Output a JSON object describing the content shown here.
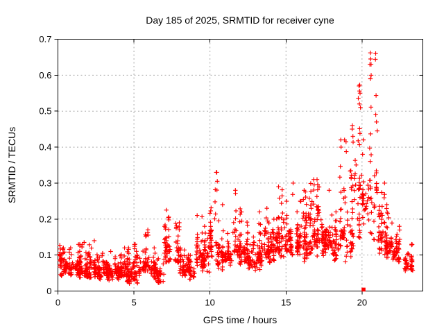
{
  "title": "Day 185 of 2025, SRMTID for receiver cyne",
  "chart_data": {
    "type": "scatter",
    "title": "Day 185 of 2025, SRMTID for receiver cyne",
    "xlabel": "GPS time / hours",
    "ylabel": "SRMTID / TECUs",
    "xlim": [
      0,
      24
    ],
    "ylim": [
      0,
      0.7
    ],
    "xticks": {
      "values": [
        0,
        5,
        10,
        15,
        20
      ],
      "labels": [
        "0",
        "5",
        "10",
        "15",
        "20"
      ]
    },
    "yticks": {
      "values": [
        0,
        0.1,
        0.2,
        0.3,
        0.4,
        0.5,
        0.6,
        0.7
      ],
      "labels": [
        "0",
        "0.1",
        "0.2",
        "0.3",
        "0.4",
        "0.5",
        "0.6",
        "0.7"
      ]
    },
    "grid": true,
    "legend": "none",
    "series": [
      {
        "name": "SRMTID",
        "marker": "plus",
        "color": "#ff0000"
      }
    ],
    "envelope_bands_format": [
      "x_start_h",
      "x_end_h",
      "y_min_TECU",
      "y_max_TECU",
      "y_typical_TECU",
      "approx_point_count"
    ],
    "envelope_bands": [
      [
        0.0,
        0.5,
        0.04,
        0.127,
        0.085,
        48
      ],
      [
        0.5,
        1.0,
        0.035,
        0.12,
        0.075,
        48
      ],
      [
        1.0,
        1.5,
        0.035,
        0.13,
        0.07,
        48
      ],
      [
        1.5,
        2.0,
        0.03,
        0.135,
        0.065,
        48
      ],
      [
        2.0,
        2.5,
        0.03,
        0.14,
        0.065,
        48
      ],
      [
        2.5,
        3.0,
        0.03,
        0.105,
        0.06,
        48
      ],
      [
        3.0,
        3.5,
        0.028,
        0.11,
        0.06,
        48
      ],
      [
        3.5,
        4.0,
        0.025,
        0.095,
        0.055,
        48
      ],
      [
        4.0,
        4.5,
        0.03,
        0.12,
        0.06,
        48
      ],
      [
        4.5,
        5.0,
        0.02,
        0.12,
        0.055,
        48
      ],
      [
        5.0,
        5.5,
        0.02,
        0.13,
        0.06,
        44
      ],
      [
        5.5,
        6.0,
        0.03,
        0.17,
        0.08,
        44
      ],
      [
        6.0,
        6.5,
        0.03,
        0.12,
        0.07,
        40
      ],
      [
        6.5,
        7.0,
        0.02,
        0.09,
        0.055,
        40
      ],
      [
        7.0,
        7.5,
        0.05,
        0.225,
        0.12,
        44
      ],
      [
        7.5,
        8.0,
        0.05,
        0.19,
        0.1,
        40
      ],
      [
        8.0,
        8.5,
        0.04,
        0.12,
        0.07,
        40
      ],
      [
        8.5,
        9.0,
        0.03,
        0.1,
        0.06,
        40
      ],
      [
        9.0,
        9.5,
        0.05,
        0.21,
        0.1,
        40
      ],
      [
        9.5,
        10.0,
        0.04,
        0.18,
        0.1,
        44
      ],
      [
        10.0,
        10.5,
        0.08,
        0.33,
        0.15,
        44
      ],
      [
        10.5,
        11.0,
        0.05,
        0.24,
        0.12,
        44
      ],
      [
        11.0,
        11.5,
        0.06,
        0.16,
        0.1,
        40
      ],
      [
        11.5,
        12.0,
        0.07,
        0.28,
        0.13,
        44
      ],
      [
        12.0,
        12.5,
        0.07,
        0.22,
        0.12,
        44
      ],
      [
        12.5,
        13.0,
        0.03,
        0.15,
        0.08,
        40
      ],
      [
        13.0,
        13.5,
        0.05,
        0.22,
        0.1,
        44
      ],
      [
        13.5,
        14.0,
        0.07,
        0.23,
        0.11,
        44
      ],
      [
        14.0,
        14.5,
        0.08,
        0.2,
        0.13,
        48
      ],
      [
        14.5,
        15.0,
        0.09,
        0.29,
        0.15,
        48
      ],
      [
        15.0,
        15.5,
        0.1,
        0.3,
        0.16,
        48
      ],
      [
        15.5,
        16.0,
        0.08,
        0.25,
        0.14,
        48
      ],
      [
        16.0,
        16.5,
        0.08,
        0.28,
        0.15,
        48
      ],
      [
        16.5,
        17.0,
        0.1,
        0.31,
        0.17,
        48
      ],
      [
        17.0,
        17.5,
        0.08,
        0.31,
        0.15,
        48
      ],
      [
        17.5,
        18.0,
        0.1,
        0.28,
        0.16,
        44
      ],
      [
        18.0,
        18.5,
        0.07,
        0.22,
        0.13,
        44
      ],
      [
        18.5,
        19.0,
        0.08,
        0.42,
        0.16,
        44
      ],
      [
        19.0,
        19.5,
        0.05,
        0.46,
        0.2,
        40
      ],
      [
        19.5,
        20.0,
        0.14,
        0.57,
        0.28,
        36
      ],
      [
        20.0,
        20.5,
        0.16,
        0.42,
        0.27,
        32
      ],
      [
        20.5,
        21.0,
        0.14,
        0.66,
        0.32,
        36
      ],
      [
        21.0,
        21.5,
        0.1,
        0.3,
        0.16,
        40
      ],
      [
        21.5,
        22.0,
        0.08,
        0.24,
        0.13,
        48
      ],
      [
        22.0,
        22.5,
        0.06,
        0.18,
        0.11,
        48
      ],
      [
        22.5,
        23.3,
        0.045,
        0.13,
        0.085,
        48
      ]
    ],
    "peak_points": [
      [
        10.45,
        0.33
      ],
      [
        10.48,
        0.305
      ],
      [
        18.6,
        0.42
      ],
      [
        18.62,
        0.4
      ],
      [
        19.35,
        0.45
      ],
      [
        19.4,
        0.43
      ],
      [
        19.83,
        0.52
      ],
      [
        19.85,
        0.573
      ],
      [
        19.87,
        0.55
      ],
      [
        19.9,
        0.51
      ],
      [
        20.52,
        0.63
      ],
      [
        20.55,
        0.662
      ],
      [
        20.57,
        0.645
      ],
      [
        20.6,
        0.6
      ],
      [
        20.55,
        0.59
      ],
      [
        20.9,
        0.49
      ],
      [
        20.95,
        0.47
      ],
      [
        21.0,
        0.445
      ]
    ],
    "isolated_square_point": {
      "x": 20.1,
      "y": 0.004,
      "marker": "square"
    }
  },
  "colors": {
    "marker": "#ff0000",
    "axis": "#000000",
    "grid": "#a8a8a8",
    "background": "#ffffff",
    "text": "#000000"
  }
}
